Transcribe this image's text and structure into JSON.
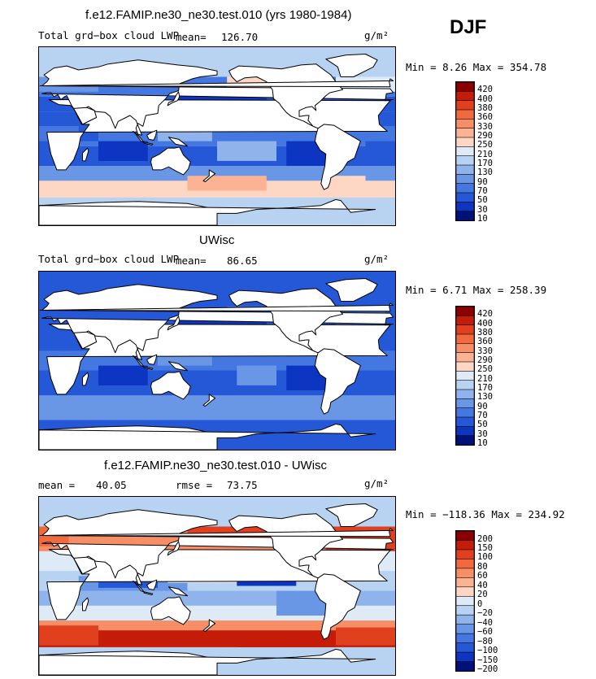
{
  "season": "DJF",
  "units_label": "g/m²",
  "chart_data": [
    {
      "type": "heatmap",
      "title": "f.e12.FAMIP.ne30_ne30.test.010 (yrs 1980-1984)",
      "variable": "Total grd−box cloud LWP",
      "mean_label": "mean=",
      "mean": "126.70",
      "min_max": "Min =    8.26 Max = 354.78",
      "colorbar_levels": [
        "420",
        "400",
        "380",
        "360",
        "330",
        "290",
        "250",
        "210",
        "170",
        "130",
        "90",
        "70",
        "50",
        "30",
        "10"
      ],
      "colors": [
        "#8b0000",
        "#c41c08",
        "#e0401e",
        "#f06a3e",
        "#f78f66",
        "#fbb394",
        "#fdd7c4",
        "#deebf7",
        "#b8d2f2",
        "#8fb4ec",
        "#6a96e6",
        "#4577e0",
        "#2458d6",
        "#0c35c2",
        "#00127a"
      ],
      "pattern": "model"
    },
    {
      "type": "heatmap",
      "title": "UWisc",
      "variable": "Total grd−box cloud LWP",
      "mean_label": "mean=",
      "mean": "86.65",
      "min_max": "Min =    6.71 Max = 258.39",
      "colorbar_levels": [
        "420",
        "400",
        "380",
        "360",
        "330",
        "290",
        "250",
        "210",
        "170",
        "130",
        "90",
        "70",
        "50",
        "30",
        "10"
      ],
      "colors": [
        "#8b0000",
        "#c41c08",
        "#e0401e",
        "#f06a3e",
        "#f78f66",
        "#fbb394",
        "#fdd7c4",
        "#deebf7",
        "#b8d2f2",
        "#8fb4ec",
        "#6a96e6",
        "#4577e0",
        "#2458d6",
        "#0c35c2",
        "#00127a"
      ],
      "pattern": "obs"
    },
    {
      "type": "heatmap",
      "title": "f.e12.FAMIP.ne30_ne30.test.010 - UWisc",
      "mean_label": "mean =",
      "mean": "40.05",
      "rmse_label": "rmse =",
      "rmse": "73.75",
      "min_max": "Min = −118.36 Max = 234.92",
      "colorbar_levels": [
        "200",
        "150",
        "100",
        "80",
        "60",
        "40",
        "20",
        "0",
        "−20",
        "−40",
        "−60",
        "−80",
        "−100",
        "−150",
        "−200"
      ],
      "colors": [
        "#8b0000",
        "#c41c08",
        "#e0401e",
        "#f06a3e",
        "#f78f66",
        "#fbb394",
        "#fdd7c4",
        "#deebf7",
        "#b8d2f2",
        "#8fb4ec",
        "#6a96e6",
        "#4577e0",
        "#2458d6",
        "#0c35c2",
        "#00127a"
      ],
      "pattern": "diff"
    }
  ]
}
